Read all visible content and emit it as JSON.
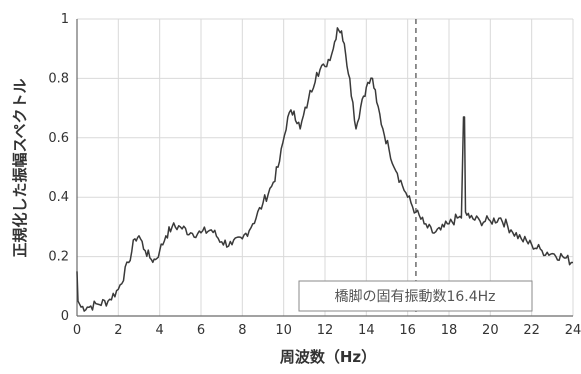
{
  "chart_data": {
    "type": "line",
    "title": "",
    "xlabel": "周波数（Hz）",
    "ylabel": "正規化した振幅スペクトル",
    "xlim": [
      0,
      24
    ],
    "ylim": [
      0,
      1
    ],
    "x_ticks": [
      "0",
      "2",
      "4",
      "6",
      "8",
      "10",
      "12",
      "14",
      "16",
      "18",
      "20",
      "22",
      "24"
    ],
    "y_ticks": [
      "0",
      "0.2",
      "0.4",
      "0.6",
      "0.8",
      "1"
    ],
    "grid": "vertical and horizontal",
    "series": [
      {
        "color": "#3a3a3a",
        "x": [
          0,
          0.05,
          0.2,
          0.5,
          1.0,
          1.5,
          2.0,
          2.5,
          2.8,
          3.0,
          3.3,
          3.6,
          3.8,
          4.0,
          4.3,
          4.6,
          5.0,
          5.5,
          6.0,
          6.5,
          7.0,
          7.5,
          8.0,
          8.5,
          9.0,
          9.5,
          9.8,
          10.2,
          10.5,
          10.8,
          11.2,
          11.6,
          12.0,
          12.4,
          12.6,
          12.8,
          13.0,
          13.2,
          13.5,
          13.8,
          14.0,
          14.3,
          14.5,
          14.8,
          15.1,
          15.5,
          16.0,
          16.4,
          16.8,
          17.2,
          17.6,
          18.0,
          18.4,
          18.6,
          18.7,
          18.75,
          18.8,
          19.0,
          19.5,
          20.0,
          20.5,
          21.0,
          21.5,
          22.0,
          22.5,
          23.0,
          23.5,
          24.0
        ],
        "values": [
          0.15,
          0.05,
          0.03,
          0.03,
          0.04,
          0.05,
          0.09,
          0.18,
          0.26,
          0.27,
          0.22,
          0.19,
          0.19,
          0.22,
          0.27,
          0.3,
          0.3,
          0.28,
          0.28,
          0.29,
          0.25,
          0.24,
          0.26,
          0.31,
          0.38,
          0.45,
          0.52,
          0.67,
          0.69,
          0.63,
          0.73,
          0.82,
          0.84,
          0.9,
          0.97,
          0.96,
          0.88,
          0.8,
          0.63,
          0.73,
          0.77,
          0.8,
          0.72,
          0.63,
          0.56,
          0.48,
          0.4,
          0.35,
          0.31,
          0.28,
          0.29,
          0.31,
          0.33,
          0.33,
          0.67,
          0.67,
          0.35,
          0.33,
          0.32,
          0.32,
          0.33,
          0.29,
          0.26,
          0.24,
          0.22,
          0.21,
          0.2,
          0.18
        ]
      }
    ],
    "marker_line": {
      "x": 16.4,
      "style": "dashed"
    },
    "annotation": "橋脚の固有振動数16.4Hz"
  }
}
